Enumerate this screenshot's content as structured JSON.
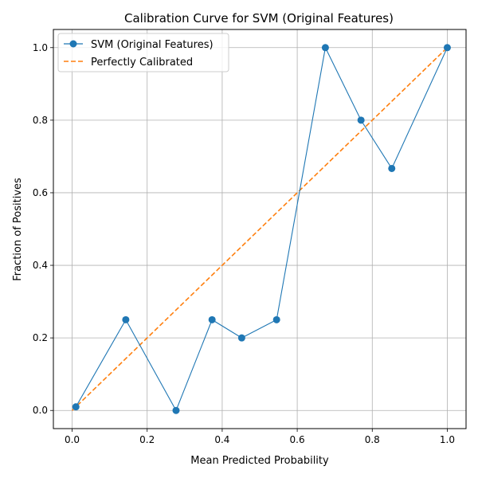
{
  "chart_data": {
    "type": "line",
    "title": "Calibration Curve for SVM (Original Features)",
    "xlabel": "Mean Predicted Probability",
    "ylabel": "Fraction of Positives",
    "xlim": [
      -0.05,
      1.05
    ],
    "ylim": [
      -0.05,
      1.05
    ],
    "xticks": [
      0.0,
      0.2,
      0.4,
      0.6,
      0.8,
      1.0
    ],
    "yticks": [
      0.0,
      0.2,
      0.4,
      0.6,
      0.8,
      1.0
    ],
    "xtick_labels": [
      "0.0",
      "0.2",
      "0.4",
      "0.6",
      "0.8",
      "1.0"
    ],
    "ytick_labels": [
      "0.0",
      "0.2",
      "0.4",
      "0.6",
      "0.8",
      "1.0"
    ],
    "grid": true,
    "legend_position": "upper-left",
    "series": [
      {
        "name": "SVM (Original Features)",
        "style": "solid-line-circle-markers",
        "color": "#1f77b4",
        "x": [
          0.01,
          0.143,
          0.277,
          0.373,
          0.452,
          0.545,
          0.675,
          0.77,
          0.852,
          1.0
        ],
        "y": [
          0.01,
          0.25,
          0.0,
          0.25,
          0.2,
          0.25,
          1.0,
          0.8,
          0.667,
          1.0
        ]
      },
      {
        "name": "Perfectly Calibrated",
        "style": "dashed-line",
        "color": "#ff7f0e",
        "x": [
          0.0,
          1.0
        ],
        "y": [
          0.0,
          1.0
        ]
      }
    ]
  }
}
